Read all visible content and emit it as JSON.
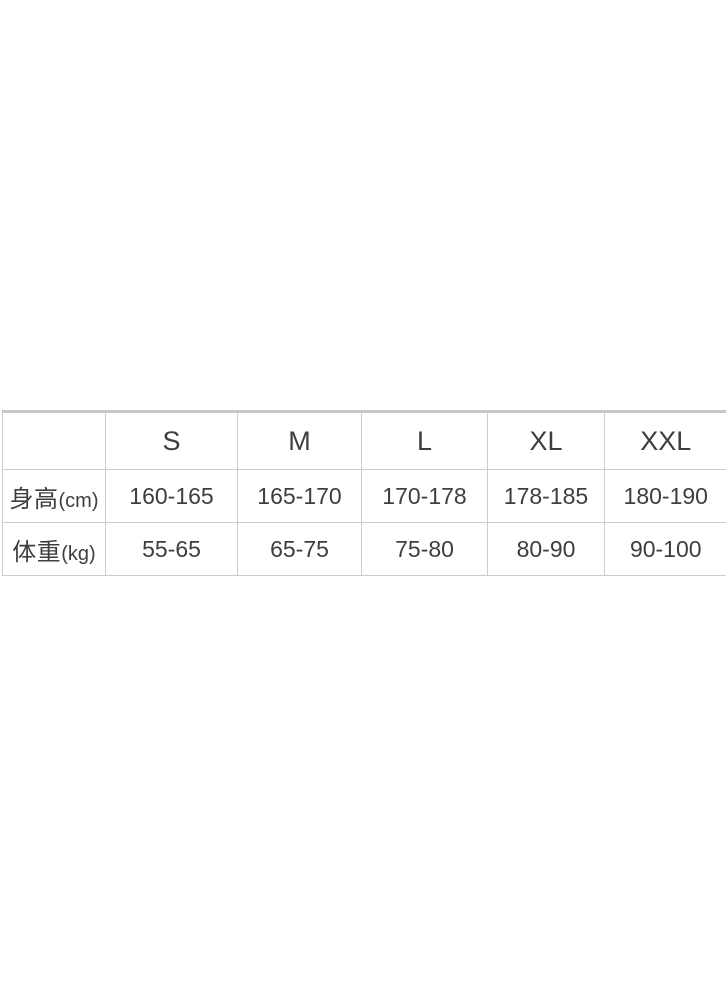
{
  "page": {
    "background_color": "#ffffff"
  },
  "size_chart": {
    "columns": [
      "",
      "S",
      "M",
      "L",
      "XL",
      "XXL"
    ],
    "rows": [
      {
        "label": "身高",
        "unit": "(cm)",
        "values": [
          "160-165",
          "165-170",
          "170-178",
          "178-185",
          "180-190"
        ]
      },
      {
        "label": "体重",
        "unit": "(kg)",
        "values": [
          "55-65",
          "65-75",
          "75-80",
          "80-90",
          "90-100"
        ]
      }
    ],
    "colors": {
      "border": "#cccccc",
      "top_border": "#c8c8c8",
      "text": "#3e3e3e"
    }
  },
  "chart_data": {
    "type": "table",
    "columns": [
      "",
      "S",
      "M",
      "L",
      "XL",
      "XXL"
    ],
    "rows": [
      [
        "身高(cm)",
        "160-165",
        "165-170",
        "170-178",
        "178-185",
        "180-190"
      ],
      [
        "体重(kg)",
        "55-65",
        "65-75",
        "75-80",
        "80-90",
        "90-100"
      ]
    ]
  }
}
